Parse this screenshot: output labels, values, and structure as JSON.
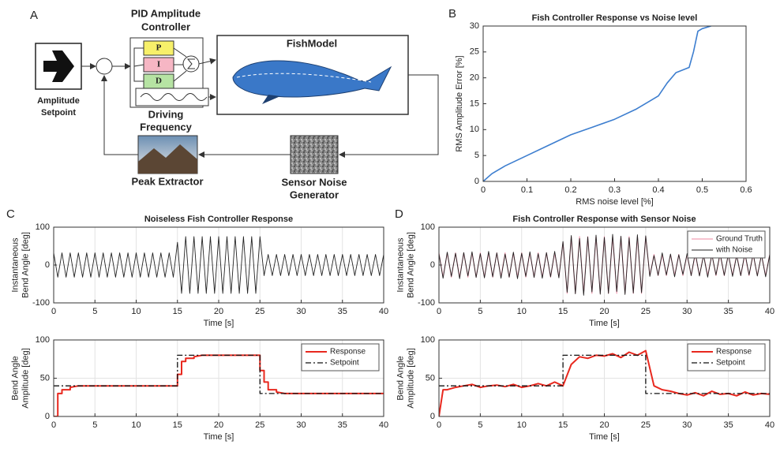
{
  "diagram": {
    "panel": "A",
    "setpoint_label": [
      "Amplitude",
      "Setpoint"
    ],
    "controller_label": [
      "PID Amplitude",
      "Controller"
    ],
    "p": "P",
    "i": "I",
    "d": "D",
    "frequency_label": [
      "Driving",
      "Frequency"
    ],
    "model_label": "FishModel",
    "peak_label": "Peak Extractor",
    "noise_label": [
      "Sensor Noise",
      "Generator"
    ]
  },
  "chart_data": [
    {
      "type": "line",
      "panel": "B",
      "title": "Fish Controller Response vs Noise level",
      "xlabel": "RMS noise level [%]",
      "ylabel": [
        "RMS Amplitude Error [%]"
      ],
      "xlim": [
        0,
        0.6
      ],
      "ylim": [
        0,
        30
      ],
      "xticks": [
        0,
        0.1,
        0.2,
        0.3,
        0.4,
        0.5,
        0.6
      ],
      "yticks": [
        0,
        5,
        10,
        15,
        20,
        25,
        30
      ],
      "grid": false,
      "series": [
        {
          "color": "#3d7ecf",
          "x": [
            0,
            0.02,
            0.05,
            0.1,
            0.15,
            0.2,
            0.25,
            0.3,
            0.35,
            0.4,
            0.42,
            0.44,
            0.47,
            0.48,
            0.49,
            0.5,
            0.52
          ],
          "values": [
            0,
            1.5,
            3,
            5,
            7,
            9,
            10.5,
            12,
            14,
            16.5,
            19,
            21,
            22,
            25,
            29,
            29.5,
            30
          ]
        }
      ]
    },
    {
      "type": "line",
      "panel": "C",
      "title": "Noiseless Fish Controller Response",
      "xlabel": "Time [s]",
      "ylabel": [
        "Instantaneous",
        "Bend Angle [deg]"
      ],
      "xlim": [
        0,
        40
      ],
      "ylim": [
        -100,
        100
      ],
      "xticks": [
        0,
        5,
        10,
        15,
        20,
        25,
        30,
        35,
        40
      ],
      "yticks": [
        -100,
        0,
        100
      ],
      "grid": true,
      "series": [
        {
          "color": "#222222",
          "x": [
            0,
            0.5,
            1,
            1.5,
            2,
            2.5,
            3,
            3.5,
            4,
            4.5,
            5,
            5.5,
            6,
            6.5,
            7,
            7.5,
            8,
            8.5,
            9,
            9.5,
            10,
            10.5,
            11,
            11.5,
            12,
            12.5,
            13,
            13.5,
            14,
            14.5,
            15,
            15.5,
            16,
            16.5,
            17,
            17.5,
            18,
            18.5,
            19,
            19.5,
            20,
            20.5,
            21,
            21.5,
            22,
            22.5,
            23,
            23.5,
            24,
            24.5,
            25,
            25.5,
            26,
            26.5,
            27,
            27.5,
            28,
            28.5,
            29,
            29.5,
            30,
            30.5,
            31,
            31.5,
            32,
            32.5,
            33,
            33.5,
            34,
            34.5,
            35,
            35.5,
            36,
            36.5,
            37,
            37.5,
            38,
            38.5,
            39,
            39.5,
            40
          ],
          "values": [
            32,
            -32,
            32,
            -32,
            32,
            -32,
            32,
            -32,
            32,
            -32,
            32,
            -32,
            32,
            -32,
            32,
            -32,
            32,
            -32,
            32,
            -32,
            32,
            -32,
            32,
            -32,
            32,
            -32,
            32,
            -32,
            32,
            -32,
            60,
            -75,
            75,
            -75,
            75,
            -75,
            75,
            -75,
            75,
            -75,
            75,
            -75,
            75,
            -75,
            75,
            -75,
            75,
            -75,
            75,
            -75,
            75,
            -28,
            28,
            -28,
            28,
            -28,
            28,
            -28,
            28,
            -28,
            28,
            -28,
            28,
            -28,
            28,
            -28,
            28,
            -28,
            28,
            -28,
            28,
            -28,
            28,
            -28,
            28,
            -28,
            28,
            -28,
            28,
            -28,
            28
          ]
        }
      ]
    },
    {
      "type": "line",
      "title": null,
      "xlabel": "Time [s]",
      "ylabel": [
        "Bend Angle",
        "Amplitude [deg]"
      ],
      "xlim": [
        0,
        40
      ],
      "ylim": [
        0,
        100
      ],
      "xticks": [
        0,
        5,
        10,
        15,
        20,
        25,
        30,
        35,
        40
      ],
      "yticks": [
        0,
        50,
        100
      ],
      "grid": true,
      "legend": "upper right",
      "series": [
        {
          "name": "Response",
          "color": "#e8281e",
          "x": [
            0,
            0.5,
            0.5,
            1,
            1,
            2,
            2,
            3,
            15,
            15,
            15.5,
            15.5,
            16,
            16,
            17,
            17,
            18,
            25,
            25,
            25.5,
            25.5,
            26,
            26,
            27,
            27,
            28,
            40
          ],
          "values": [
            0,
            0,
            30,
            30,
            35,
            35,
            38,
            40,
            40,
            55,
            55,
            72,
            72,
            76,
            76,
            78,
            80,
            80,
            60,
            60,
            45,
            45,
            35,
            35,
            32,
            30,
            30
          ]
        },
        {
          "name": "Setpoint",
          "color": "#111111",
          "style": "dashdot",
          "x": [
            0,
            15,
            15,
            25,
            25,
            40
          ],
          "values": [
            40,
            40,
            80,
            80,
            30,
            30
          ]
        }
      ]
    },
    {
      "type": "line",
      "panel": "D",
      "title": "Fish Controller Response with Sensor Noise",
      "xlabel": "Time [s]",
      "ylabel": [
        "Instantaneous",
        "Bend Angle [deg]"
      ],
      "xlim": [
        0,
        40
      ],
      "ylim": [
        -100,
        100
      ],
      "xticks": [
        0,
        5,
        10,
        15,
        20,
        25,
        30,
        35,
        40
      ],
      "yticks": [
        -100,
        0,
        100
      ],
      "grid": true,
      "legend": "upper right",
      "series": [
        {
          "name": "Ground Truth",
          "color": "#f2a0b5",
          "x": [
            0,
            0.5,
            1,
            1.5,
            2,
            2.5,
            3,
            3.5,
            4,
            4.5,
            5,
            5.5,
            6,
            6.5,
            7,
            7.5,
            8,
            8.5,
            9,
            9.5,
            10,
            10.5,
            11,
            11.5,
            12,
            12.5,
            13,
            13.5,
            14,
            14.5,
            15,
            15.5,
            16,
            16.5,
            17,
            17.5,
            18,
            18.5,
            19,
            19.5,
            20,
            20.5,
            21,
            21.5,
            22,
            22.5,
            23,
            23.5,
            24,
            24.5,
            25,
            25.5,
            26,
            26.5,
            27,
            27.5,
            28,
            28.5,
            29,
            29.5,
            30,
            30.5,
            31,
            31.5,
            32,
            32.5,
            33,
            33.5,
            34,
            34.5,
            35,
            35.5,
            36,
            36.5,
            37,
            37.5,
            38,
            38.5,
            39,
            39.5,
            40
          ],
          "values": [
            32,
            -32,
            32,
            -32,
            32,
            -32,
            32,
            -32,
            32,
            -32,
            32,
            -32,
            32,
            -32,
            32,
            -32,
            32,
            -32,
            32,
            -32,
            32,
            -32,
            32,
            -32,
            32,
            -32,
            32,
            -32,
            32,
            -32,
            60,
            -75,
            75,
            -75,
            75,
            -75,
            75,
            -75,
            75,
            -75,
            75,
            -75,
            75,
            -75,
            75,
            -75,
            75,
            -75,
            75,
            -75,
            75,
            -28,
            28,
            -28,
            28,
            -28,
            28,
            -28,
            28,
            -28,
            28,
            -28,
            28,
            -28,
            28,
            -28,
            28,
            -28,
            28,
            -28,
            28,
            -28,
            28,
            -28,
            28,
            -28,
            28,
            -28,
            28,
            -28,
            28
          ]
        },
        {
          "name": "with Noise",
          "color": "#222222",
          "x": [
            0,
            0.5,
            1,
            1.5,
            2,
            2.5,
            3,
            3.5,
            4,
            4.5,
            5,
            5.5,
            6,
            6.5,
            7,
            7.5,
            8,
            8.5,
            9,
            9.5,
            10,
            10.5,
            11,
            11.5,
            12,
            12.5,
            13,
            13.5,
            14,
            14.5,
            15,
            15.5,
            16,
            16.5,
            17,
            17.5,
            18,
            18.5,
            19,
            19.5,
            20,
            20.5,
            21,
            21.5,
            22,
            22.5,
            23,
            23.5,
            24,
            24.5,
            25,
            25.5,
            26,
            26.5,
            27,
            27.5,
            28,
            28.5,
            29,
            29.5,
            30,
            30.5,
            31,
            31.5,
            32,
            32.5,
            33,
            33.5,
            34,
            34.5,
            35,
            35.5,
            36,
            36.5,
            37,
            37.5,
            38,
            38.5,
            39,
            39.5,
            40
          ],
          "values": [
            30,
            -35,
            34,
            -30,
            31,
            -36,
            33,
            -29,
            35,
            -33,
            30,
            -34,
            36,
            -31,
            32,
            -35,
            29,
            -32,
            34,
            -36,
            31,
            -30,
            35,
            -33,
            30,
            -35,
            33,
            -31,
            36,
            -34,
            62,
            -72,
            78,
            -76,
            70,
            -80,
            74,
            -71,
            79,
            -77,
            73,
            -75,
            81,
            -70,
            76,
            -78,
            72,
            -74,
            80,
            -73,
            77,
            -30,
            25,
            -27,
            32,
            -26,
            29,
            -31,
            27,
            -25,
            30,
            -28,
            33,
            -29,
            26,
            -32,
            28,
            -26,
            31,
            -27,
            29,
            -30,
            25,
            -28,
            32,
            -26,
            30,
            -29,
            27,
            -31,
            28
          ]
        }
      ]
    },
    {
      "type": "line",
      "title": null,
      "xlabel": "Time [s]",
      "ylabel": [
        "Bend Angle",
        "Amplitude [deg]"
      ],
      "xlim": [
        0,
        40
      ],
      "ylim": [
        0,
        100
      ],
      "xticks": [
        0,
        5,
        10,
        15,
        20,
        25,
        30,
        35,
        40
      ],
      "yticks": [
        0,
        50,
        100
      ],
      "grid": true,
      "legend": "upper right",
      "series": [
        {
          "name": "Response",
          "color": "#e8281e",
          "x": [
            0,
            0.5,
            1,
            2,
            3,
            4,
            5,
            6,
            7,
            8,
            9,
            10,
            11,
            12,
            13,
            14,
            15,
            16,
            17,
            18,
            19,
            20,
            21,
            22,
            23,
            24,
            25,
            26,
            27,
            28,
            29,
            30,
            31,
            32,
            33,
            34,
            35,
            36,
            37,
            38,
            39,
            40
          ],
          "values": [
            0,
            35,
            35,
            38,
            40,
            42,
            38,
            40,
            41,
            39,
            42,
            38,
            40,
            43,
            40,
            45,
            40,
            68,
            78,
            76,
            80,
            79,
            82,
            77,
            84,
            80,
            86,
            40,
            35,
            33,
            30,
            28,
            31,
            27,
            33,
            29,
            30,
            27,
            32,
            28,
            30,
            29
          ]
        },
        {
          "name": "Setpoint",
          "color": "#111111",
          "style": "dashdot",
          "x": [
            0,
            15,
            15,
            25,
            25,
            40
          ],
          "values": [
            40,
            40,
            80,
            80,
            30,
            30
          ]
        }
      ]
    }
  ]
}
